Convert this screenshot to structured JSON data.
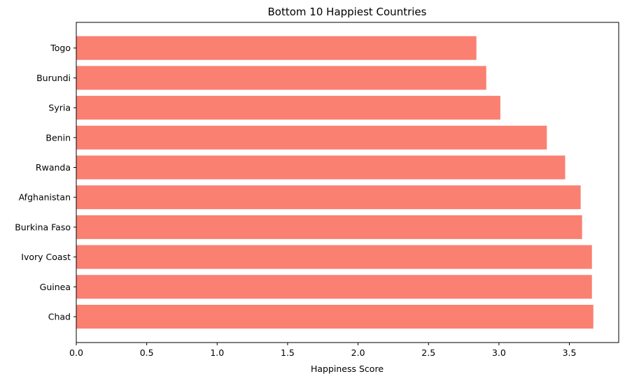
{
  "chart_data": {
    "type": "bar",
    "orientation": "horizontal",
    "title": "Bottom 10 Happiest Countries",
    "xlabel": "Happiness Score",
    "ylabel": "",
    "categories": [
      "Chad",
      "Guinea",
      "Ivory Coast",
      "Burkina Faso",
      "Afghanistan",
      "Rwanda",
      "Benin",
      "Syria",
      "Burundi",
      "Togo"
    ],
    "values": [
      3.67,
      3.66,
      3.66,
      3.59,
      3.58,
      3.47,
      3.34,
      3.01,
      2.91,
      2.84
    ],
    "xlim": [
      0,
      3.85
    ],
    "xticks": [
      "0.0",
      "0.5",
      "1.0",
      "1.5",
      "2.0",
      "2.5",
      "3.0",
      "3.5"
    ],
    "grid": false,
    "legend": "none",
    "bar_color": "#fa8072"
  }
}
